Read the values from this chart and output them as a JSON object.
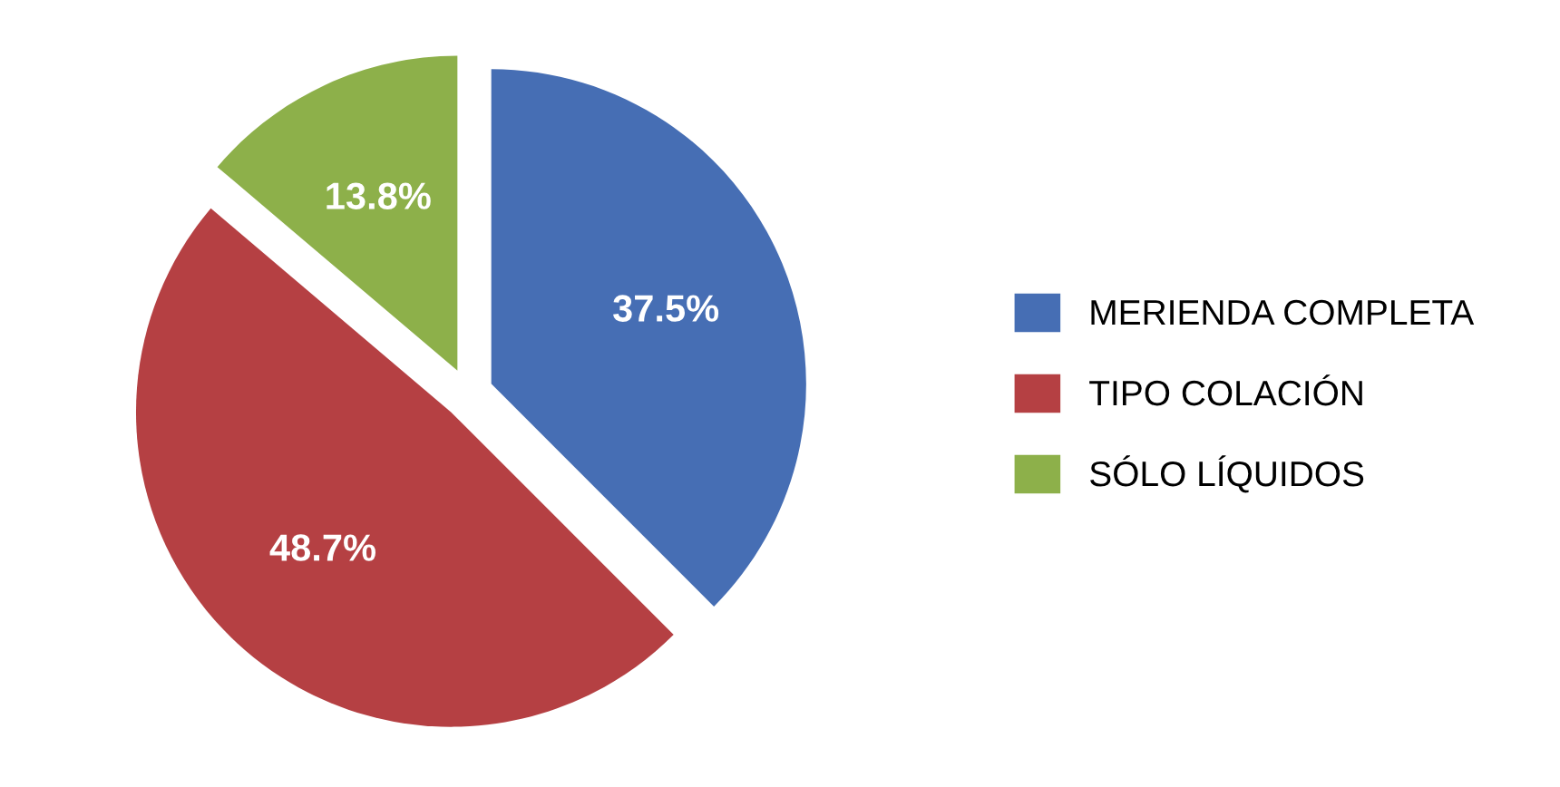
{
  "chart_data": {
    "type": "pie",
    "categories": [
      "MERIENDA COMPLETA",
      "TIPO COLACIÓN",
      "SÓLO LÍQUIDOS"
    ],
    "values": [
      37.5,
      48.7,
      13.8
    ],
    "colors": [
      "#466eb4",
      "#b54043",
      "#8db04a"
    ],
    "value_labels": [
      "37.5%",
      "48.7%",
      "13.8%"
    ],
    "legend": "right"
  }
}
